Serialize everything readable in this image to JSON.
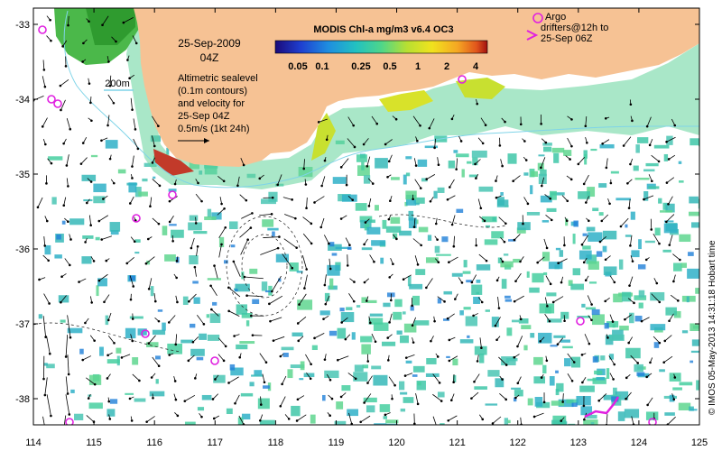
{
  "map": {
    "date_line1": "25-Sep-2009",
    "date_line2": "04Z",
    "depth_label": "200m",
    "description_lines": [
      "Altimetric sealevel",
      "(0.1m contours)",
      "and velocity for",
      "25-Sep 04Z"
    ],
    "scale_label": "0.5m/s (1kt 24h)",
    "colorbar": {
      "title": "MODIS Chl-a mg/m3 v6.4 OC3",
      "ticks": [
        "0.05",
        "0.1",
        "0.25",
        "0.5",
        "1",
        "2",
        "4"
      ],
      "colors": [
        "#2a1a8a",
        "#1f4fd0",
        "#1f8ee0",
        "#22c1c1",
        "#4ed68a",
        "#b7e032",
        "#f1e21e",
        "#f5a623",
        "#e0541c",
        "#a01010"
      ]
    },
    "argo_legend": {
      "line1": "Argo",
      "line2": "drifters@12h to",
      "line3": "25-Sep 06Z"
    },
    "credit": "© IMOS 05-May-2013 14:31:18 Hobart time",
    "x_ticks": [
      "114",
      "115",
      "116",
      "117",
      "118",
      "119",
      "120",
      "121",
      "122",
      "123",
      "124",
      "125"
    ],
    "y_ticks": [
      "-33",
      "-34",
      "-35",
      "-36",
      "-37",
      "-38"
    ],
    "colors": {
      "land": "#f6c294",
      "coast_chl": "#8cd648",
      "ocean_chl": "#3fc7a8",
      "argo": "#e020e0",
      "contour": "#7fd4e8"
    }
  }
}
